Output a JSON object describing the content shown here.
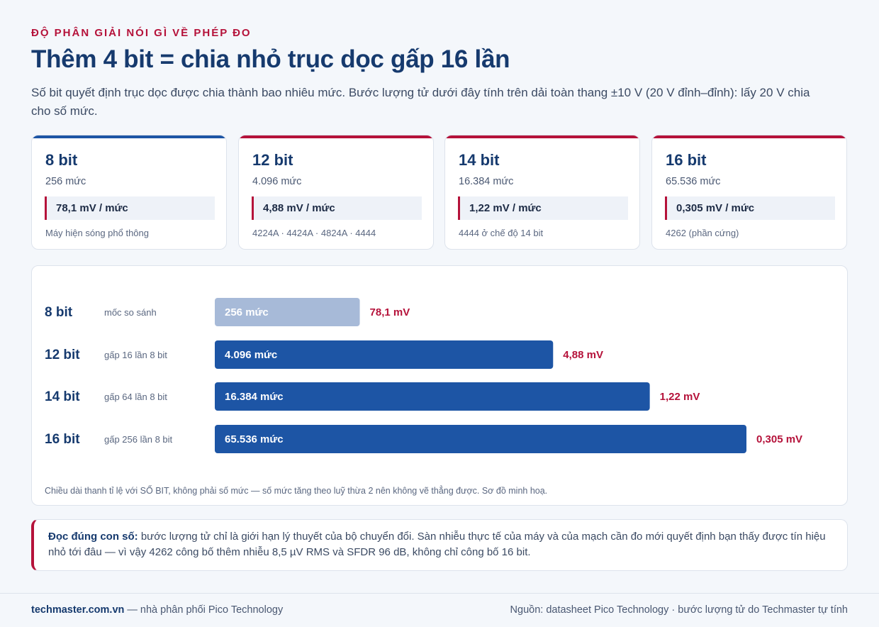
{
  "header": {
    "eyebrow": "ĐỘ PHÂN GIẢI NÓI GÌ VỀ PHÉP ĐO",
    "title": "Thêm 4 bit = chia nhỏ trục dọc gấp 16 lần",
    "subtitle": "Số bit quyết định trục dọc được chia thành bao nhiêu mức. Bước lượng tử dưới đây tính trên dải toàn thang ±10 V (20 V đỉnh–đỉnh): lấy 20 V chia cho số mức."
  },
  "cards": [
    {
      "bits": "8 bit",
      "levels": "256 mức",
      "step": "78,1 mV / mức",
      "note": "Máy hiện sóng phổ thông",
      "accent": "#1d55a5"
    },
    {
      "bits": "12 bit",
      "levels": "4.096 mức",
      "step": "4,88 mV / mức",
      "note": "4224A · 4424A · 4824A · 4444",
      "accent": "#b5123a"
    },
    {
      "bits": "14 bit",
      "levels": "16.384 mức",
      "step": "1,22 mV / mức",
      "note": "4444 ở chế độ 14 bit",
      "accent": "#b5123a"
    },
    {
      "bits": "16 bit",
      "levels": "65.536 mức",
      "step": "0,305 mV / mức",
      "note": "4262 (phần cứng)",
      "accent": "#b5123a"
    }
  ],
  "chart_data": {
    "type": "bar",
    "orientation": "horizontal",
    "categories": [
      "8 bit",
      "12 bit",
      "14 bit",
      "16 bit"
    ],
    "sublabels": [
      "mốc so sánh",
      "gấp 16 lần 8 bit",
      "gấp 64 lần 8 bit",
      "gấp 256 lần 8 bit"
    ],
    "values": [
      8,
      12,
      14,
      16
    ],
    "bar_labels": [
      "256 mức",
      "4.096 mức",
      "16.384 mức",
      "65.536 mức"
    ],
    "step_labels": [
      "78,1 mV",
      "4,88 mV",
      "1,22 mV",
      "0,305 mV"
    ],
    "xlim": [
      5,
      16
    ],
    "colors": [
      "#a7bad8",
      "#1d55a5",
      "#1d55a5",
      "#1d55a5"
    ],
    "label_color": "#b5123a",
    "grid": false,
    "note": "Chiều dài thanh tỉ lệ với SỐ BIT, không phải số mức — số mức tăng theo luỹ thừa 2 nên không vẽ thẳng được. Sơ đồ minh hoạ."
  },
  "callout": {
    "lead": "Đọc đúng con số:",
    "text": " bước lượng tử chỉ là giới hạn lý thuyết của bộ chuyển đổi. Sàn nhiễu thực tế của máy và của mạch cần đo mới quyết định bạn thấy được tín hiệu nhỏ tới đâu — vì vậy 4262 công bố thêm nhiễu 8,5 µV RMS và SFDR 96 dB, không chỉ công bố 16 bit."
  },
  "footer": {
    "site": "techmaster.com.vn",
    "tagline": " — nhà phân phối Pico Technology",
    "source": "Nguồn: datasheet Pico Technology · bước lượng tử do Techmaster tự tính"
  }
}
